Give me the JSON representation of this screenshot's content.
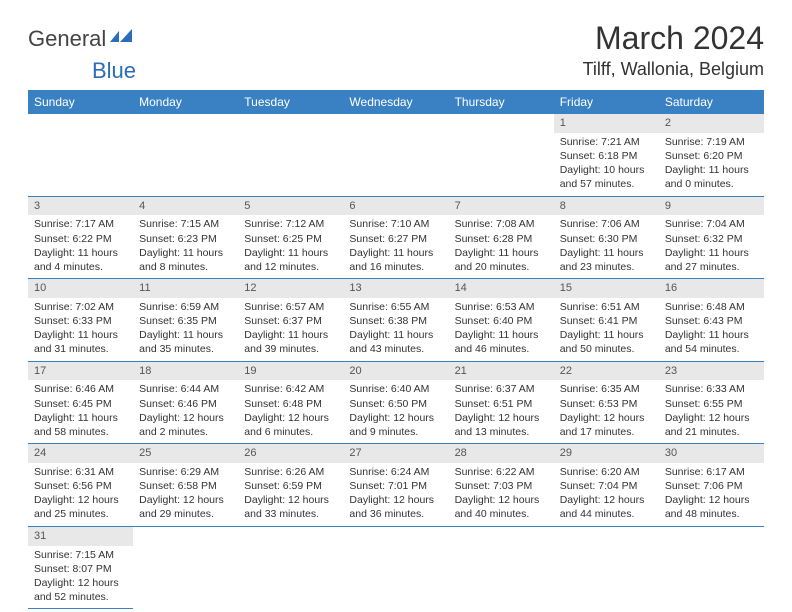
{
  "logo": {
    "general": "General",
    "blue": "Blue"
  },
  "title": "March 2024",
  "location": "Tilff, Wallonia, Belgium",
  "colors": {
    "header_bg": "#3a81c4",
    "header_text": "#ffffff",
    "daynum_bg": "#e8e8e8",
    "border": "#3a81c4",
    "logo_blue": "#2a6db8",
    "logo_gray": "#444444",
    "body_text": "#333333"
  },
  "typography": {
    "title_fontsize": 32,
    "location_fontsize": 18,
    "header_fontsize": 12,
    "cell_fontsize": 10.5,
    "daynum_fontsize": 11
  },
  "weekdays": [
    "Sunday",
    "Monday",
    "Tuesday",
    "Wednesday",
    "Thursday",
    "Friday",
    "Saturday"
  ],
  "weeks": [
    [
      null,
      null,
      null,
      null,
      null,
      {
        "n": "1",
        "sr": "Sunrise: 7:21 AM",
        "ss": "Sunset: 6:18 PM",
        "dl": "Daylight: 10 hours and 57 minutes."
      },
      {
        "n": "2",
        "sr": "Sunrise: 7:19 AM",
        "ss": "Sunset: 6:20 PM",
        "dl": "Daylight: 11 hours and 0 minutes."
      }
    ],
    [
      {
        "n": "3",
        "sr": "Sunrise: 7:17 AM",
        "ss": "Sunset: 6:22 PM",
        "dl": "Daylight: 11 hours and 4 minutes."
      },
      {
        "n": "4",
        "sr": "Sunrise: 7:15 AM",
        "ss": "Sunset: 6:23 PM",
        "dl": "Daylight: 11 hours and 8 minutes."
      },
      {
        "n": "5",
        "sr": "Sunrise: 7:12 AM",
        "ss": "Sunset: 6:25 PM",
        "dl": "Daylight: 11 hours and 12 minutes."
      },
      {
        "n": "6",
        "sr": "Sunrise: 7:10 AM",
        "ss": "Sunset: 6:27 PM",
        "dl": "Daylight: 11 hours and 16 minutes."
      },
      {
        "n": "7",
        "sr": "Sunrise: 7:08 AM",
        "ss": "Sunset: 6:28 PM",
        "dl": "Daylight: 11 hours and 20 minutes."
      },
      {
        "n": "8",
        "sr": "Sunrise: 7:06 AM",
        "ss": "Sunset: 6:30 PM",
        "dl": "Daylight: 11 hours and 23 minutes."
      },
      {
        "n": "9",
        "sr": "Sunrise: 7:04 AM",
        "ss": "Sunset: 6:32 PM",
        "dl": "Daylight: 11 hours and 27 minutes."
      }
    ],
    [
      {
        "n": "10",
        "sr": "Sunrise: 7:02 AM",
        "ss": "Sunset: 6:33 PM",
        "dl": "Daylight: 11 hours and 31 minutes."
      },
      {
        "n": "11",
        "sr": "Sunrise: 6:59 AM",
        "ss": "Sunset: 6:35 PM",
        "dl": "Daylight: 11 hours and 35 minutes."
      },
      {
        "n": "12",
        "sr": "Sunrise: 6:57 AM",
        "ss": "Sunset: 6:37 PM",
        "dl": "Daylight: 11 hours and 39 minutes."
      },
      {
        "n": "13",
        "sr": "Sunrise: 6:55 AM",
        "ss": "Sunset: 6:38 PM",
        "dl": "Daylight: 11 hours and 43 minutes."
      },
      {
        "n": "14",
        "sr": "Sunrise: 6:53 AM",
        "ss": "Sunset: 6:40 PM",
        "dl": "Daylight: 11 hours and 46 minutes."
      },
      {
        "n": "15",
        "sr": "Sunrise: 6:51 AM",
        "ss": "Sunset: 6:41 PM",
        "dl": "Daylight: 11 hours and 50 minutes."
      },
      {
        "n": "16",
        "sr": "Sunrise: 6:48 AM",
        "ss": "Sunset: 6:43 PM",
        "dl": "Daylight: 11 hours and 54 minutes."
      }
    ],
    [
      {
        "n": "17",
        "sr": "Sunrise: 6:46 AM",
        "ss": "Sunset: 6:45 PM",
        "dl": "Daylight: 11 hours and 58 minutes."
      },
      {
        "n": "18",
        "sr": "Sunrise: 6:44 AM",
        "ss": "Sunset: 6:46 PM",
        "dl": "Daylight: 12 hours and 2 minutes."
      },
      {
        "n": "19",
        "sr": "Sunrise: 6:42 AM",
        "ss": "Sunset: 6:48 PM",
        "dl": "Daylight: 12 hours and 6 minutes."
      },
      {
        "n": "20",
        "sr": "Sunrise: 6:40 AM",
        "ss": "Sunset: 6:50 PM",
        "dl": "Daylight: 12 hours and 9 minutes."
      },
      {
        "n": "21",
        "sr": "Sunrise: 6:37 AM",
        "ss": "Sunset: 6:51 PM",
        "dl": "Daylight: 12 hours and 13 minutes."
      },
      {
        "n": "22",
        "sr": "Sunrise: 6:35 AM",
        "ss": "Sunset: 6:53 PM",
        "dl": "Daylight: 12 hours and 17 minutes."
      },
      {
        "n": "23",
        "sr": "Sunrise: 6:33 AM",
        "ss": "Sunset: 6:55 PM",
        "dl": "Daylight: 12 hours and 21 minutes."
      }
    ],
    [
      {
        "n": "24",
        "sr": "Sunrise: 6:31 AM",
        "ss": "Sunset: 6:56 PM",
        "dl": "Daylight: 12 hours and 25 minutes."
      },
      {
        "n": "25",
        "sr": "Sunrise: 6:29 AM",
        "ss": "Sunset: 6:58 PM",
        "dl": "Daylight: 12 hours and 29 minutes."
      },
      {
        "n": "26",
        "sr": "Sunrise: 6:26 AM",
        "ss": "Sunset: 6:59 PM",
        "dl": "Daylight: 12 hours and 33 minutes."
      },
      {
        "n": "27",
        "sr": "Sunrise: 6:24 AM",
        "ss": "Sunset: 7:01 PM",
        "dl": "Daylight: 12 hours and 36 minutes."
      },
      {
        "n": "28",
        "sr": "Sunrise: 6:22 AM",
        "ss": "Sunset: 7:03 PM",
        "dl": "Daylight: 12 hours and 40 minutes."
      },
      {
        "n": "29",
        "sr": "Sunrise: 6:20 AM",
        "ss": "Sunset: 7:04 PM",
        "dl": "Daylight: 12 hours and 44 minutes."
      },
      {
        "n": "30",
        "sr": "Sunrise: 6:17 AM",
        "ss": "Sunset: 7:06 PM",
        "dl": "Daylight: 12 hours and 48 minutes."
      }
    ],
    [
      {
        "n": "31",
        "sr": "Sunrise: 7:15 AM",
        "ss": "Sunset: 8:07 PM",
        "dl": "Daylight: 12 hours and 52 minutes."
      },
      null,
      null,
      null,
      null,
      null,
      null
    ]
  ]
}
